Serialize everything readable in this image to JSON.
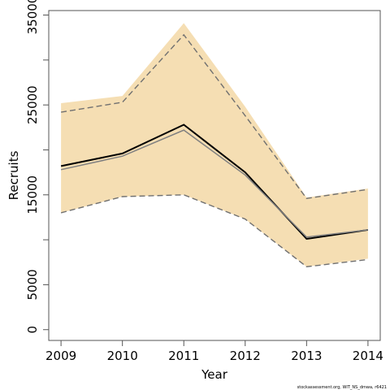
{
  "chart_data": {
    "type": "line",
    "title": "",
    "xlabel": "Year",
    "ylabel": "Recruits",
    "x": [
      2009,
      2010,
      2011,
      2012,
      2013,
      2014
    ],
    "x_tick_labels": [
      "2009",
      "2010",
      "2011",
      "2012",
      "2013",
      "2014"
    ],
    "y_ticks": [
      0,
      5000,
      10000,
      15000,
      20000,
      25000,
      30000,
      35000
    ],
    "y_tick_labels": [
      "0",
      "5000",
      "15000",
      "25000",
      "35000"
    ],
    "y_tick_labeled_values": [
      0,
      5000,
      15000,
      25000,
      35000
    ],
    "xlim": [
      2008.8,
      2014.2
    ],
    "ylim": [
      -1200,
      35500
    ],
    "grid": false,
    "legend": "none",
    "series": [
      {
        "role": "band",
        "upper": [
          25200,
          26000,
          34100,
          24800,
          14700,
          15700
        ],
        "lower": [
          13000,
          14800,
          15000,
          12300,
          7000,
          7900
        ],
        "color": "#f5deb3"
      },
      {
        "role": "line",
        "values": [
          18200,
          19600,
          22800,
          17500,
          10100,
          11100
        ],
        "color": "#000000",
        "style": "solid",
        "width": 2
      },
      {
        "role": "line",
        "values": [
          17800,
          19300,
          22200,
          17200,
          10300,
          11100
        ],
        "color": "#808080",
        "style": "solid",
        "width": 1.5
      },
      {
        "role": "line",
        "values": [
          24200,
          25300,
          32800,
          23800,
          14600,
          15600
        ],
        "color": "#707070",
        "style": "dashed",
        "width": 1.4
      },
      {
        "role": "line",
        "values": [
          13000,
          14800,
          15000,
          12300,
          7000,
          7800
        ],
        "color": "#707070",
        "style": "dashed",
        "width": 1.4
      }
    ]
  },
  "footnote": "stockassessment.org, WIT_NS_dmwa, r6421"
}
